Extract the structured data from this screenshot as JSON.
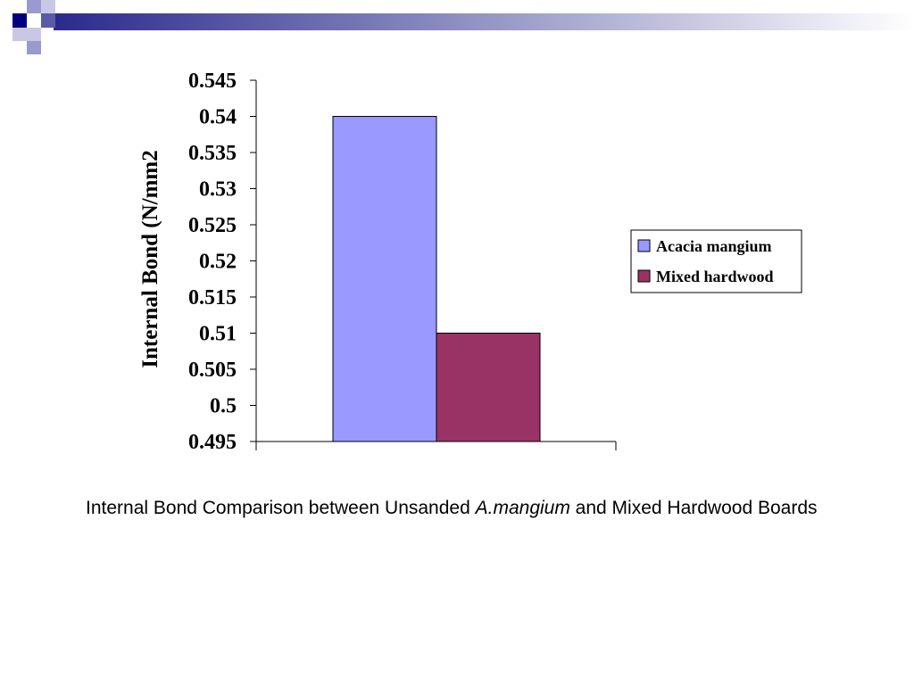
{
  "theme": {
    "header_square_colors": [
      "#000080",
      "#5a5aa8",
      "#9a9ad0",
      "#c8c8e6"
    ],
    "header_gradient_start": "#2a2a8c",
    "header_gradient_end": "#ffffff"
  },
  "chart_data": {
    "type": "bar",
    "categories": [
      ""
    ],
    "series": [
      {
        "name": "Acacia mangium",
        "values": [
          0.54
        ],
        "color": "#9999ff"
      },
      {
        "name": "Mixed hardwood",
        "values": [
          0.51
        ],
        "color": "#993366"
      }
    ],
    "ylabel": "Internal Bond (N/mm2",
    "xlabel": "",
    "ylim": [
      0.495,
      0.545
    ],
    "yticks": [
      "0.545",
      "0.54",
      "0.535",
      "0.53",
      "0.525",
      "0.52",
      "0.515",
      "0.51",
      "0.505",
      "0.5",
      "0.495"
    ],
    "ytick_values": [
      0.545,
      0.54,
      0.535,
      0.53,
      0.525,
      0.52,
      0.515,
      0.51,
      0.505,
      0.5,
      0.495
    ],
    "grid": false,
    "legend_position": "right"
  },
  "caption": {
    "part1": "Internal Bond Comparison between Unsanded ",
    "italic": "A.mangium",
    "part2": " and Mixed Hardwood Boards"
  }
}
